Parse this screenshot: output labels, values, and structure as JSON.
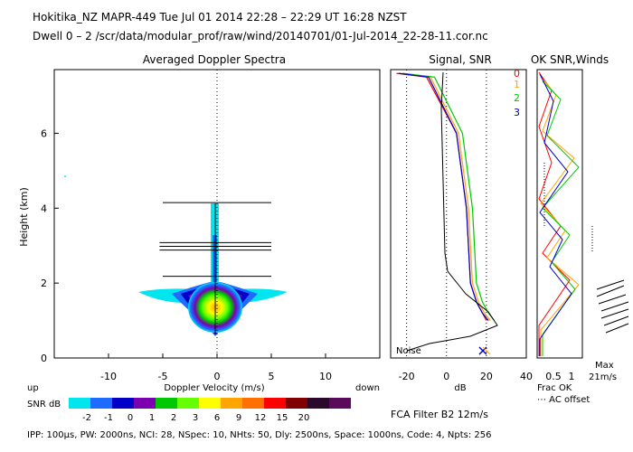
{
  "header": {
    "line1": "Hokitika_NZ   MAPR-449   Tue Jul 01 2014 22:28 – 22:29 UT 16:28 NZST",
    "line2": "Dwell   0 –   2   /scr/data/modular_prof/raw/wind/20140701/01-Jul-2014_22-28-11.cor.nc"
  },
  "footer": {
    "params": "IPP: 100μs,  PW: 2000ns,  NCI:  28,  NSpec: 10,  NHts: 50,  Dly: 2500ns,  Space: 1000ns,  Code: 4,  Npts: 256",
    "filter": "FCA Filter B2 12m/s",
    "direction_up": "up",
    "direction_down": "down"
  },
  "colors": {
    "snr_scale": [
      "#00e5ee",
      "#1e6bff",
      "#0000c8",
      "#7a00b0",
      "#00c800",
      "#66ff00",
      "#ffff00",
      "#ffa500",
      "#ff7000",
      "#ff0000",
      "#800000",
      "#2a0a2a",
      "#5a0a5a"
    ]
  },
  "chart_data": [
    {
      "type": "heatmap",
      "title": "Averaged Doppler Spectra",
      "xlabel": "Doppler Velocity (m/s)",
      "ylabel": "Height (km)",
      "xlim": [
        -15,
        15
      ],
      "ylim": [
        0,
        7.7
      ],
      "x_ticks": [
        -10,
        -5,
        0,
        5,
        10
      ],
      "y_ticks": [
        0,
        2,
        4,
        6
      ],
      "colorbar": {
        "label": "SNR dB",
        "tick_labels": [
          "-2",
          "-1",
          "0",
          "1",
          "2",
          "3",
          "6",
          "9",
          "12",
          "15",
          "20"
        ]
      },
      "horizontal_bars": [
        {
          "height": 4.15,
          "x_min": -5,
          "x_max": 5
        },
        {
          "height": 3.08,
          "x_min": -5.3,
          "x_max": 5
        },
        {
          "height": 2.98,
          "x_min": -5.3,
          "x_max": 5
        },
        {
          "height": 2.88,
          "x_min": -5.3,
          "x_max": 5
        },
        {
          "height": 2.18,
          "x_min": -5,
          "x_max": 5
        }
      ]
    },
    {
      "type": "line",
      "title": "Signal, SNR",
      "xlabel": "dB",
      "xlim": [
        -28,
        40
      ],
      "x_ticks": [
        -20,
        0,
        20,
        40
      ],
      "annotations": [
        "Noise"
      ],
      "series": [
        {
          "name": "0",
          "color": "#ff0000",
          "x": [
            20,
            18,
            15,
            12,
            10,
            5,
            -10,
            -25
          ],
          "y": [
            1.0,
            1.2,
            1.5,
            2.0,
            4.0,
            6.0,
            7.5,
            7.6
          ]
        },
        {
          "name": "1",
          "color": "#ffa500",
          "x": [
            22,
            19,
            16,
            13,
            11,
            6,
            -8,
            -24
          ],
          "y": [
            1.0,
            1.2,
            1.5,
            2.0,
            4.0,
            6.0,
            7.5,
            7.6
          ]
        },
        {
          "name": "2",
          "color": "#00c800",
          "x": [
            24,
            21,
            18,
            15,
            13,
            8,
            -6,
            -22
          ],
          "y": [
            1.0,
            1.2,
            1.5,
            2.0,
            4.0,
            6.0,
            7.5,
            7.6
          ]
        },
        {
          "name": "3",
          "color": "#0000c8",
          "x": [
            21,
            18,
            15,
            12,
            10,
            5,
            -9,
            -24
          ],
          "y": [
            1.0,
            1.2,
            1.5,
            2.0,
            4.0,
            6.0,
            7.5,
            7.6
          ]
        }
      ]
    },
    {
      "type": "line",
      "title": "OK SNR,Winds",
      "x_ticks": [
        "0.5",
        "1"
      ],
      "legend_labels": [
        "0",
        "1",
        "2",
        "3"
      ],
      "labels": [
        "Max",
        "21m/s",
        "Frac OK",
        "⋯ AC offset"
      ]
    }
  ]
}
